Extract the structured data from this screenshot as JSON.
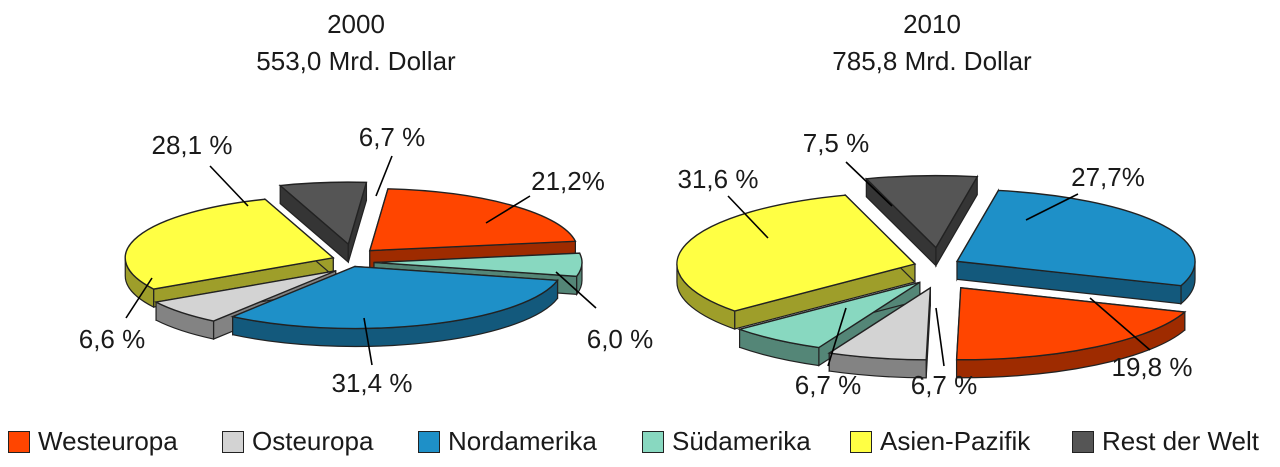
{
  "chart_data": [
    {
      "type": "pie",
      "title": "2000",
      "subtitle": "553,0 Mrd. Dollar",
      "slices": [
        {
          "label": "Westeuropa",
          "value": 21.2,
          "display": "21,2%",
          "color": "#ff4500"
        },
        {
          "label": "Südamerika",
          "value": 6.0,
          "display": "6,0 %",
          "color": "#88d8c0"
        },
        {
          "label": "Nordamerika",
          "value": 31.4,
          "display": "31,4 %",
          "color": "#1e90c8"
        },
        {
          "label": "Osteuropa",
          "value": 6.6,
          "display": "6,6 %",
          "color": "#d3d3d3"
        },
        {
          "label": "Asien-Pazifik",
          "value": 28.1,
          "display": "28,1 %",
          "color": "#ffff44"
        },
        {
          "label": "Rest der Welt",
          "value": 6.7,
          "display": "6,7 %",
          "color": "#555555"
        }
      ]
    },
    {
      "type": "pie",
      "title": "2010",
      "subtitle": "785,8 Mrd. Dollar",
      "slices": [
        {
          "label": "Nordamerika",
          "value": 27.7,
          "display": "27,7%",
          "color": "#1e90c8"
        },
        {
          "label": "Westeuropa",
          "value": 19.8,
          "display": "19,8 %",
          "color": "#ff4500"
        },
        {
          "label": "Osteuropa",
          "value": 6.7,
          "display": "6,7 %",
          "color": "#d3d3d3"
        },
        {
          "label": "Südamerika",
          "value": 6.7,
          "display": "6,7 %",
          "color": "#88d8c0"
        },
        {
          "label": "Asien-Pazifik",
          "value": 31.6,
          "display": "31,6 %",
          "color": "#ffff44"
        },
        {
          "label": "Rest der Welt",
          "value": 7.5,
          "display": "7,5 %",
          "color": "#555555"
        }
      ]
    }
  ],
  "legend": [
    {
      "label": "Westeuropa",
      "color": "#ff4500"
    },
    {
      "label": "Osteuropa",
      "color": "#d3d3d3"
    },
    {
      "label": "Nordamerika",
      "color": "#1e90c8"
    },
    {
      "label": "Südamerika",
      "color": "#88d8c0"
    },
    {
      "label": "Asien-Pazifik",
      "color": "#ffff44"
    },
    {
      "label": "Rest der Welt",
      "color": "#555555"
    }
  ]
}
